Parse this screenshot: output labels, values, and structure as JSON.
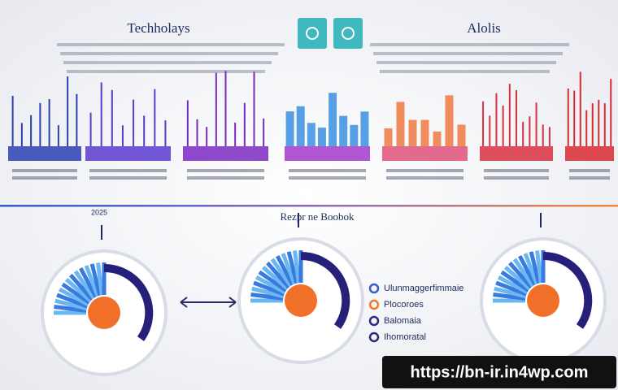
{
  "header": {
    "left_title": "Techholays",
    "right_title": "Alolis"
  },
  "section": {
    "title": "Rezpr ne Boobok",
    "year": "2025"
  },
  "legend": {
    "items": [
      "Ulunmaggerfimmaie",
      "Plocoroes",
      "Balomaia",
      "Ihomoratal"
    ]
  },
  "footer": {
    "url": "https://bn-ir.in4wp.com"
  }
}
